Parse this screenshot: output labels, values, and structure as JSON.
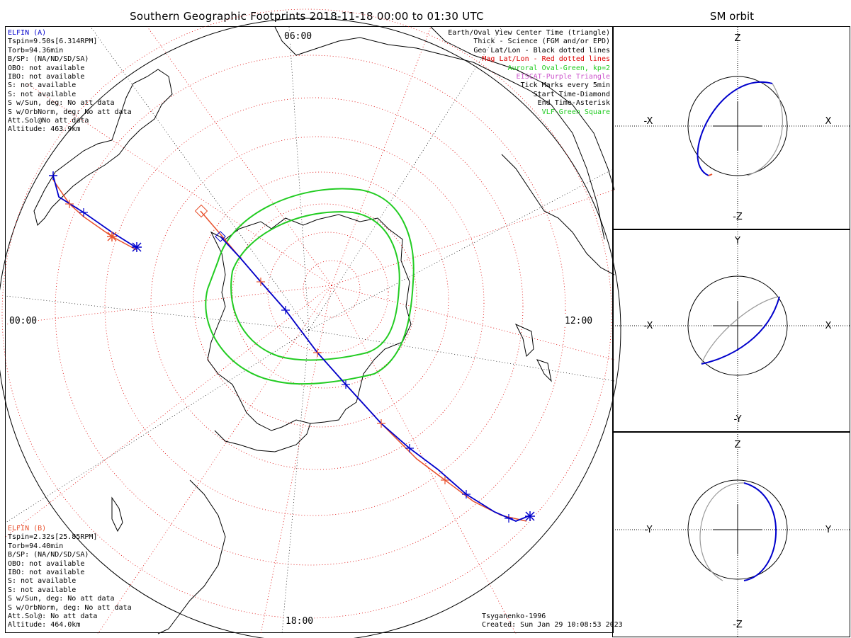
{
  "title": "Southern Geographic Footprints 2018-11-18 00:00 to 01:30 UTC",
  "sm_title": "SM orbit",
  "elfin_a": {
    "color": "#0000cc",
    "lines": [
      "ELFIN (A)",
      "Tspin=9.50s[6.314RPM]",
      "Torb=94.36min",
      "B/SP: (NA/ND/SD/SA)",
      "OBO: not available",
      "IBO: not available",
      "S: not available",
      "S: not available",
      "S w/Sun, deg: No att data",
      "S w/OrbNorm, deg: No att data",
      "Att.Sol@No att data",
      "Altitude: 463.9km"
    ]
  },
  "elfin_b": {
    "color": "#e8502c",
    "lines": [
      "ELFIN (B)",
      "Tspin=2.32s[25.85RPM]",
      "Torb=94.40min",
      "B/SP: (NA/ND/SD/SA)",
      "OBO: not available",
      "IBO: not available",
      "S: not available",
      "S: not available",
      "S w/Sun, deg: No att data",
      "S w/OrbNorm, deg: No att data",
      "Att.Sol@: No att data",
      "Altitude: 464.0km"
    ]
  },
  "legend": [
    {
      "text": "Earth/Oval View Center Time (triangle)",
      "color": "#000000"
    },
    {
      "text": "Thick - Science (FGM and/or EPD)",
      "color": "#000000"
    },
    {
      "text": "Geo Lat/Lon - Black dotted lines",
      "color": "#000000"
    },
    {
      "text": "Mag Lat/Lon - Red dotted lines",
      "color": "#dd0000"
    },
    {
      "text": "Auroral Oval-Green, kp=2",
      "color": "#22cc22"
    },
    {
      "text": "EISCAT-Purple Triangle",
      "color": "#cc55cc"
    },
    {
      "text": "Tick Marks every 5min",
      "color": "#000000"
    },
    {
      "text": "Start Time-Diamond",
      "color": "#000000"
    },
    {
      "text": "End Time-Asterisk",
      "color": "#000000"
    },
    {
      "text": "VLF-Green Square",
      "color": "#22cc22"
    }
  ],
  "mlt_labels": {
    "top": "06:00",
    "left": "00:00",
    "right": "12:00",
    "bottom": "18:00"
  },
  "footer": {
    "model": "Tsyganenko-1996",
    "created": "Created: Sun Jan 29 10:08:53 2023"
  },
  "sm_panels": [
    {
      "top": "Z",
      "bottom": "-Z",
      "left": "-X",
      "right": "X"
    },
    {
      "top": "Y",
      "bottom": "-Y",
      "left": "-X",
      "right": "X"
    },
    {
      "top": "Z",
      "bottom": "-Z",
      "left": "-Y",
      "right": "Y"
    }
  ],
  "colors": {
    "orbit_a": "#0000cc",
    "orbit_b": "#e8502c",
    "mag_grid": "#dd0000",
    "oval": "#22cc22",
    "orbit_other": "#999999"
  }
}
